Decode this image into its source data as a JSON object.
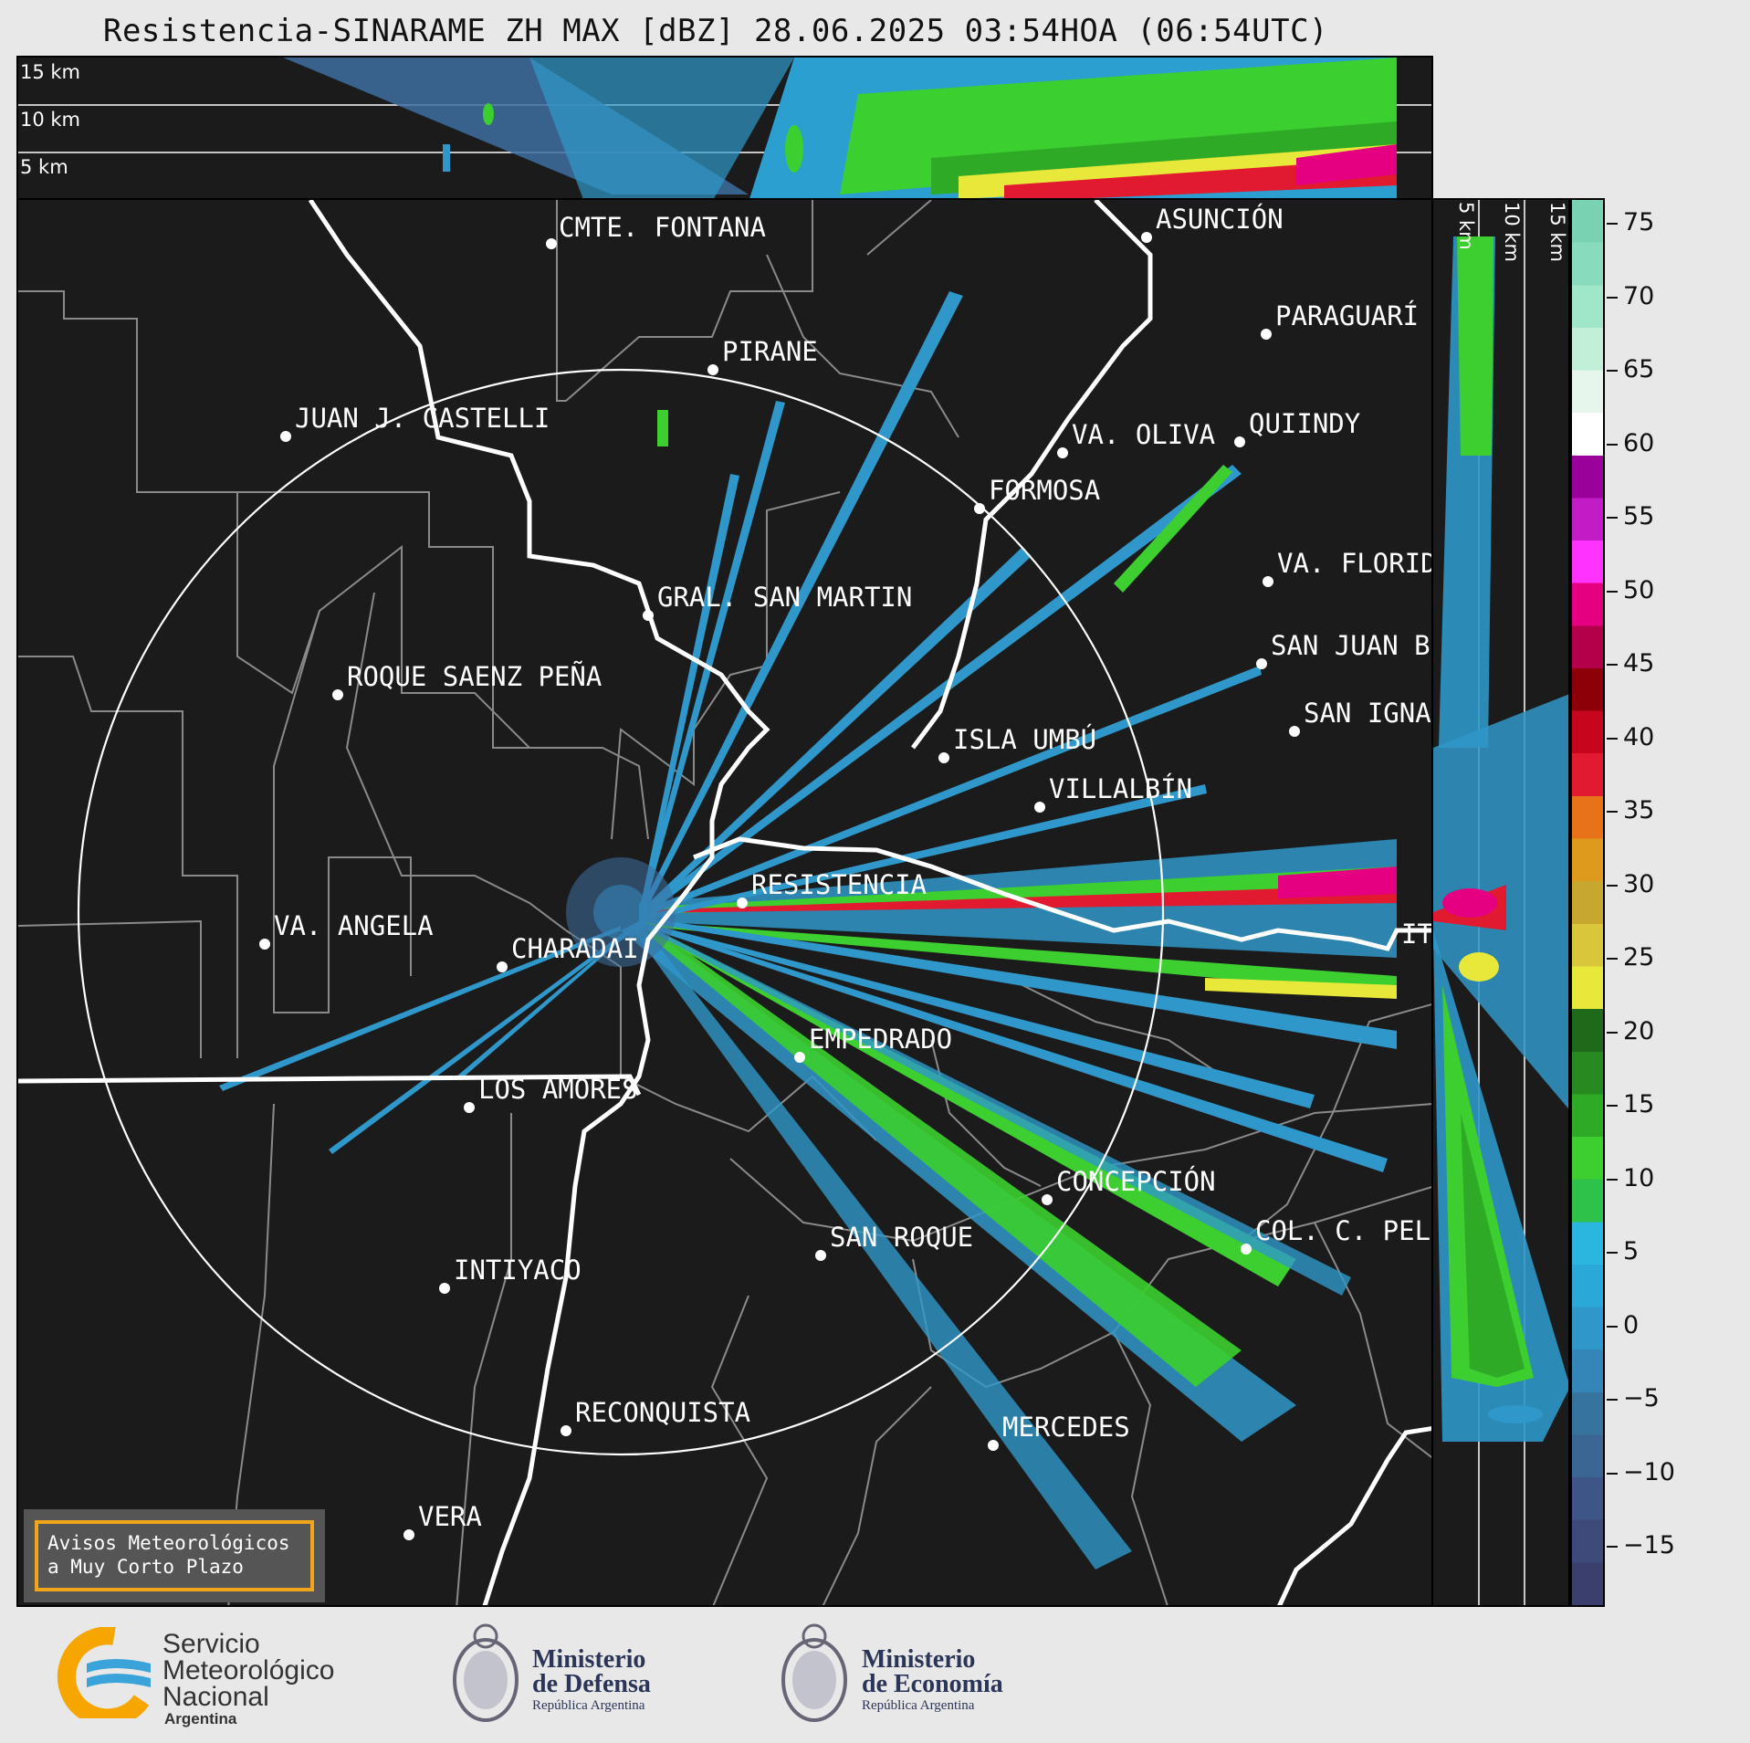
{
  "title": "Resistencia-SINARAME ZH MAX [dBZ] 28.06.2025 03:54HOA (06:54UTC)",
  "top_panel": {
    "height_labels": [
      "15 km",
      "10 km",
      "5 km"
    ]
  },
  "side_panel": {
    "height_labels": [
      "5 km",
      "10 km",
      "15 km"
    ]
  },
  "cities": [
    {
      "name": "CMTE. FONTANA"
    },
    {
      "name": "ASUNCIÓN"
    },
    {
      "name": "PIRANE"
    },
    {
      "name": "PARAGUARÍ"
    },
    {
      "name": "JUAN J. CASTELLI"
    },
    {
      "name": "VA. OLIVA"
    },
    {
      "name": "QUIINDY"
    },
    {
      "name": "FORMOSA"
    },
    {
      "name": "VA. FLORIDA"
    },
    {
      "name": "GRAL. SAN MARTIN"
    },
    {
      "name": "SAN JUAN B"
    },
    {
      "name": "ROQUE SAENZ PEÑA"
    },
    {
      "name": "SAN IGNA"
    },
    {
      "name": "ISLA UMBÚ"
    },
    {
      "name": "VILLALBÍN"
    },
    {
      "name": "RESISTENCIA"
    },
    {
      "name": "VA. ANGELA"
    },
    {
      "name": "CHARADAI"
    },
    {
      "name": "IT"
    },
    {
      "name": "EMPEDRADO"
    },
    {
      "name": "LOS AMORES"
    },
    {
      "name": "CONCEPCIÓN"
    },
    {
      "name": "COL. C. PEL"
    },
    {
      "name": "SAN ROQUE"
    },
    {
      "name": "INTIYACO"
    },
    {
      "name": "RECONQUISTA"
    },
    {
      "name": "MERCEDES"
    },
    {
      "name": "VERA"
    }
  ],
  "colorbar": {
    "ticks": [
      "75",
      "70",
      "65",
      "60",
      "55",
      "50",
      "45",
      "40",
      "35",
      "30",
      "25",
      "20",
      "15",
      "10",
      "5",
      "0",
      "−5",
      "−10",
      "−15"
    ],
    "colors": [
      "#3a3f6b",
      "#3d4a7a",
      "#3d5687",
      "#3b6593",
      "#37749d",
      "#3485b8",
      "#2f97c9",
      "#2aa8d8",
      "#2ab6df",
      "#2fc24a",
      "#3ccf2f",
      "#2faa26",
      "#268a20",
      "#1f6a1a",
      "#e7e839",
      "#d9c63a",
      "#c8a72e",
      "#de9a1d",
      "#e8721a",
      "#e21a2f",
      "#c5061c",
      "#8e0008",
      "#b4004a",
      "#e40080",
      "#ff33ff",
      "#c21cc6",
      "#9a009a",
      "#ffffff",
      "#e6f6ec",
      "#c1efd8",
      "#a0e6c8",
      "#88dcbd",
      "#79d3b3"
    ]
  },
  "aviso": {
    "line1": "Avisos Meteorológicos",
    "line2": "a Muy Corto Plazo"
  },
  "logos": {
    "smn": {
      "line1": "Servicio",
      "line2": "Meteorológico",
      "line3": "Nacional",
      "sub": "Argentina"
    },
    "defensa": {
      "line1": "Ministerio",
      "line2": "de Defensa",
      "sub": "República Argentina"
    },
    "economia": {
      "line1": "Ministerio",
      "line2": "de Economía",
      "sub": "República Argentina"
    }
  }
}
